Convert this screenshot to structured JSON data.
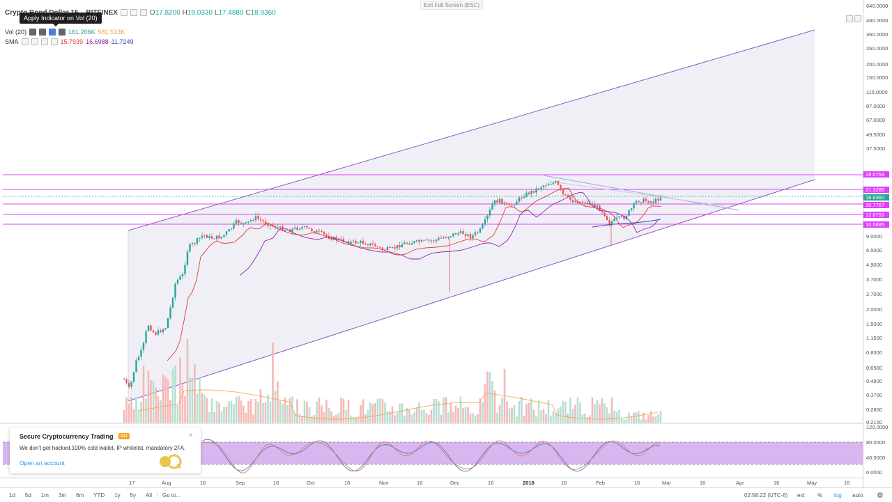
{
  "header": {
    "symbol": "Crypto Bond Dollar 15",
    "exchange": "BITFINEX",
    "ohlc": {
      "O": "17.8200",
      "H": "19.0330",
      "L": "17.4880",
      "C": "18.9360"
    },
    "o_label": "O",
    "h_label": "H",
    "l_label": "L",
    "c_label": "C",
    "exit_fullscreen": "Exit Full Screen (ESC)"
  },
  "tooltip": "Apply Indicator on Vol (20)",
  "indicators": {
    "vol": {
      "label": "Vol (20)",
      "v1": "161.206K",
      "v2": "581.533K",
      "v1_color": "#26a69a",
      "v2_color": "#f5a142"
    },
    "sma": {
      "label": "SMA",
      "v1": "15.7939",
      "v2": "16.6988",
      "v3": "11.7249",
      "c1": "#e53935",
      "c2": "#8e24aa",
      "c3": "#3949ab"
    }
  },
  "price_axis": {
    "ticks": [
      "640.0000",
      "480.0000",
      "360.0000",
      "260.0000",
      "200.0000",
      "150.0000",
      "115.0000",
      "87.0000",
      "67.0000",
      "49.5000",
      "37.5000",
      "9.0000",
      "6.5000",
      "4.9000",
      "3.7000",
      "2.7000",
      "2.0000",
      "1.5000",
      "1.1500",
      "0.8500",
      "0.6500",
      "0.4900",
      "0.3700",
      "0.2800",
      "0.2150"
    ],
    "labels": [
      {
        "value": "28.5759",
        "color": "#e040fb"
      },
      {
        "value": "21.3285",
        "color": "#e040fb"
      },
      {
        "value": "18.9360",
        "color": "#26a69a"
      },
      {
        "value": "15.7767",
        "color": "#e040fb"
      },
      {
        "value": "12.8751",
        "color": "#e040fb"
      },
      {
        "value": "10.5885",
        "color": "#e040fb"
      }
    ],
    "osc_ticks": [
      "120.0000",
      "80.0000",
      "40.0000",
      "0.0000"
    ]
  },
  "time_axis": {
    "ticks": [
      {
        "label": "17",
        "bold": false
      },
      {
        "label": "Aug",
        "bold": false
      },
      {
        "label": "16",
        "bold": false
      },
      {
        "label": "Sep",
        "bold": false
      },
      {
        "label": "16",
        "bold": false
      },
      {
        "label": "Oct",
        "bold": false
      },
      {
        "label": "16",
        "bold": false
      },
      {
        "label": "Nov",
        "bold": false
      },
      {
        "label": "16",
        "bold": false
      },
      {
        "label": "Dec",
        "bold": false
      },
      {
        "label": "16",
        "bold": false
      },
      {
        "label": "2018",
        "bold": true
      },
      {
        "label": "16",
        "bold": false
      },
      {
        "label": "Feb",
        "bold": false
      },
      {
        "label": "16",
        "bold": false
      },
      {
        "label": "Mar",
        "bold": false
      },
      {
        "label": "16",
        "bold": false
      },
      {
        "label": "Apr",
        "bold": false
      },
      {
        "label": "16",
        "bold": false
      },
      {
        "label": "May",
        "bold": false
      },
      {
        "label": "16",
        "bold": false
      }
    ]
  },
  "bottom_bar": {
    "ranges": [
      "1d",
      "5d",
      "1m",
      "3m",
      "6m",
      "YTD",
      "1y",
      "5y",
      "All"
    ],
    "goto": "Go to...",
    "time": "02:58:22 (UTC-6)",
    "ext": "ext",
    "percent": "%",
    "log": "log",
    "auto": "auto"
  },
  "ad": {
    "title": "Secure Cryptocurrency Trading",
    "badge": "AD",
    "description": "We don't get hacked.100% cold wallet, IP whitelist, mandatory 2FA.",
    "link": "Open an account",
    "close": "×"
  },
  "colors": {
    "up": "#26a69a",
    "down": "#ef5350",
    "channel": "#8e55c9",
    "hline": "#e040fb",
    "osc_fill": "#d8b7f0"
  }
}
